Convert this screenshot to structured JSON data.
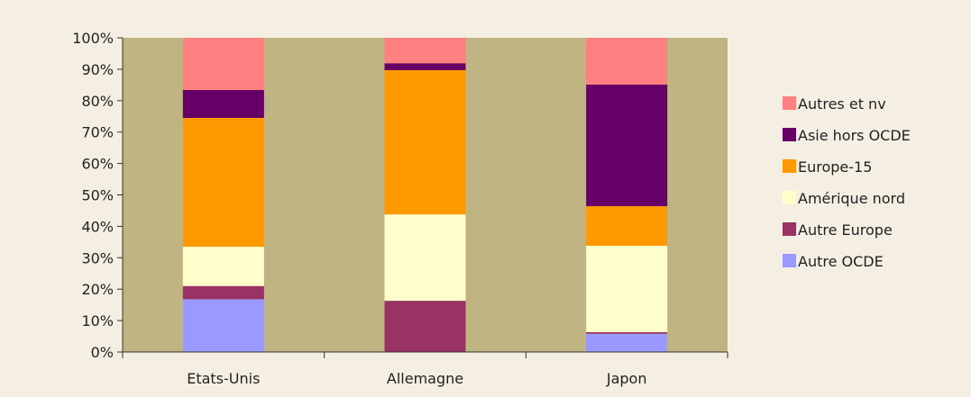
{
  "chart_data": {
    "type": "bar",
    "stacked": true,
    "normalized": true,
    "title": "",
    "xlabel": "",
    "ylabel": "",
    "ylim": [
      0,
      100
    ],
    "y_ticks": [
      "0%",
      "10%",
      "20%",
      "30%",
      "40%",
      "50%",
      "60%",
      "70%",
      "80%",
      "90%",
      "100%"
    ],
    "categories": [
      "Etats-Unis",
      "Allemagne",
      "Japon"
    ],
    "series": [
      {
        "name": "Autre OCDE",
        "color": "#9999ff",
        "values": [
          16.8,
          0,
          5.8
        ]
      },
      {
        "name": "Autre Europe",
        "color": "#993366",
        "values": [
          4.2,
          16.3,
          0.5
        ]
      },
      {
        "name": "Amérique nord",
        "color": "#ffffcc",
        "values": [
          12.5,
          27.5,
          27.5
        ]
      },
      {
        "name": "Europe-15",
        "color": "#ff9900",
        "values": [
          41.0,
          45.9,
          12.6
        ]
      },
      {
        "name": "Asie hors OCDE",
        "color": "#660066",
        "values": [
          8.9,
          2.2,
          38.7
        ]
      },
      {
        "name": "Autres et nv",
        "color": "#ff8080",
        "values": [
          16.6,
          8.1,
          14.9
        ]
      }
    ],
    "legend_position": "right",
    "legend_order": [
      "Autres et nv",
      "Asie hors OCDE",
      "Europe-15",
      "Amérique nord",
      "Autre Europe",
      "Autre OCDE"
    ],
    "plot_background": "#c0b483",
    "grid": false
  }
}
